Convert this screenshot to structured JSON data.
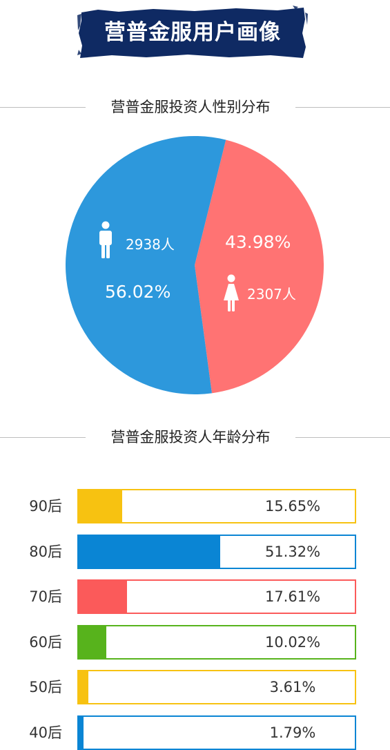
{
  "header": {
    "title": "营普金服用户画像"
  },
  "sections": {
    "gender_title": "营普金服投资人性别分布",
    "age_title": "营普金服投资人年龄分布"
  },
  "colors": {
    "banner": "#0f2a63",
    "male": "#2d98dc",
    "female": "#ff7373"
  },
  "gender": {
    "male": {
      "count_label": "2938人",
      "percent_label": "56.02%",
      "icon": "male-person-icon"
    },
    "female": {
      "count_label": "2307人",
      "percent_label": "43.98%",
      "icon": "female-person-icon"
    }
  },
  "chart_data": [
    {
      "type": "pie",
      "title": "营普金服投资人性别分布",
      "labels": [
        "",
        ""
      ],
      "values": [
        56.02,
        43.98
      ],
      "counts": [
        2938,
        2307
      ],
      "colors": [
        "#2d98dc",
        "#ff7373"
      ]
    },
    {
      "type": "bar",
      "orientation": "horizontal",
      "title": "营普金服投资人年龄分布",
      "categories": [
        "90后",
        "80后",
        "70后",
        "60后",
        "50后",
        "40后"
      ],
      "values": [
        15.65,
        51.32,
        17.61,
        10.02,
        3.61,
        1.79
      ],
      "value_labels": [
        "15.65%",
        "51.32%",
        "17.61%",
        "10.02%",
        "3.61%",
        "1.79%"
      ],
      "colors": [
        "#f7c211",
        "#0a85d4",
        "#fb5a5a",
        "#57b31c",
        "#f7c211",
        "#0a85d4"
      ],
      "xlim": [
        0,
        100
      ]
    }
  ]
}
